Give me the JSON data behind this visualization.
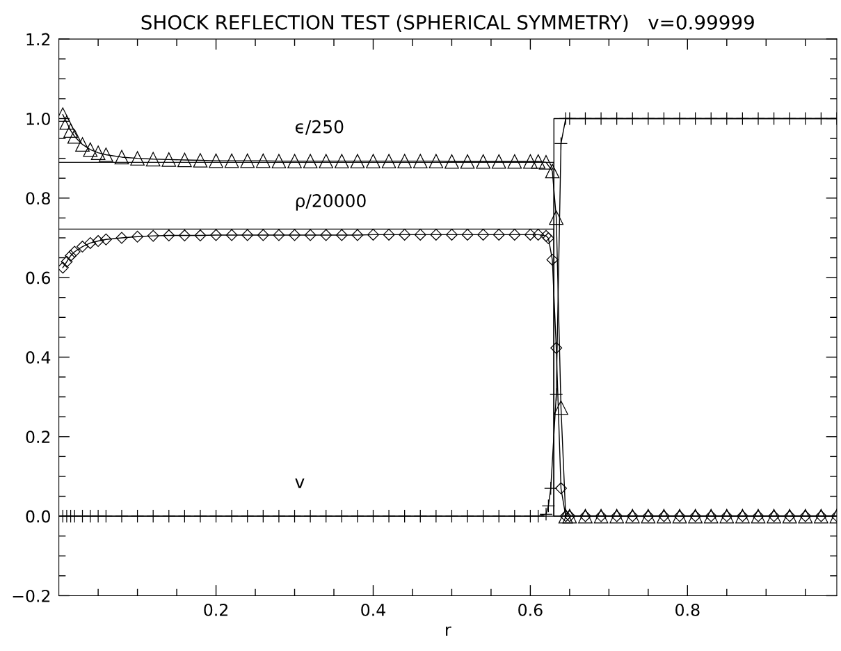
{
  "chart_data": {
    "type": "line",
    "title": "SHOCK REFLECTION TEST (SPHERICAL SYMMETRY)   v=0.99999",
    "xlabel": "r",
    "xlim": [
      0,
      0.99
    ],
    "ylim": [
      -0.2,
      1.2
    ],
    "xticks": [
      {
        "value": 0.05,
        "label": null
      },
      {
        "value": 0.1,
        "label": null
      },
      {
        "value": 0.15,
        "label": null
      },
      0.2,
      {
        "value": 0.25,
        "label": null
      },
      {
        "value": 0.3,
        "label": null
      },
      {
        "value": 0.35,
        "label": null
      },
      0.4,
      {
        "value": 0.45,
        "label": null
      },
      {
        "value": 0.5,
        "label": null
      },
      {
        "value": 0.55,
        "label": null
      },
      0.6,
      {
        "value": 0.65,
        "label": null
      },
      {
        "value": 0.7,
        "label": null
      },
      {
        "value": 0.75,
        "label": null
      },
      0.8,
      {
        "value": 0.85,
        "label": null
      },
      {
        "value": 0.9,
        "label": null
      },
      {
        "value": 0.95,
        "label": null
      }
    ],
    "yticks": [
      {
        "value": -0.2,
        "label": "−0.2"
      },
      {
        "value": -0.15,
        "label": null
      },
      {
        "value": -0.1,
        "label": null
      },
      {
        "value": -0.05,
        "label": null
      },
      {
        "value": 0.0,
        "label": "0.0"
      },
      {
        "value": 0.05,
        "label": null
      },
      {
        "value": 0.1,
        "label": null
      },
      {
        "value": 0.15,
        "label": null
      },
      0.2,
      {
        "value": 0.25,
        "label": null
      },
      {
        "value": 0.3,
        "label": null
      },
      {
        "value": 0.35,
        "label": null
      },
      0.4,
      {
        "value": 0.45,
        "label": null
      },
      {
        "value": 0.5,
        "label": null
      },
      {
        "value": 0.55,
        "label": null
      },
      0.6,
      {
        "value": 0.65,
        "label": null
      },
      {
        "value": 0.7,
        "label": null
      },
      {
        "value": 0.75,
        "label": null
      },
      0.8,
      {
        "value": 0.85,
        "label": null
      },
      {
        "value": 0.9,
        "label": null
      },
      {
        "value": 0.95,
        "label": null
      },
      {
        "value": 1.0,
        "label": "1.0"
      },
      {
        "value": 1.05,
        "label": null
      },
      {
        "value": 1.1,
        "label": null
      },
      {
        "value": 1.15,
        "label": null
      },
      1.2
    ],
    "grid": false,
    "legend": false,
    "series": [
      {
        "type": "line",
        "color": "#000000",
        "marker": "none",
        "line_style": "solid",
        "x": [
          0,
          0.63,
          0.63,
          0.99
        ],
        "values": [
          0.89,
          0.89,
          0,
          0
        ]
      },
      {
        "type": "line",
        "color": "#000000",
        "marker": "none",
        "line_style": "solid",
        "x": [
          0,
          0.63,
          0.63,
          0.99
        ],
        "values": [
          0.722,
          0.722,
          0,
          0
        ]
      },
      {
        "type": "line",
        "color": "#000000",
        "marker": "none",
        "line_style": "solid",
        "x": [
          0,
          0.63,
          0.63,
          0.99
        ],
        "values": [
          0,
          0,
          1,
          1
        ]
      },
      {
        "type": "line",
        "name": "ϵ/250",
        "color": "#000000",
        "marker": "triangle",
        "line_style": "solid",
        "x": [
          0.005,
          0.01,
          0.015,
          0.02,
          0.03,
          0.04,
          0.05,
          0.06,
          0.08,
          0.1,
          0.12,
          0.14,
          0.16,
          0.18,
          0.2,
          0.22,
          0.24,
          0.26,
          0.28,
          0.3,
          0.32,
          0.34,
          0.36,
          0.38,
          0.4,
          0.42,
          0.44,
          0.46,
          0.48,
          0.5,
          0.52,
          0.54,
          0.56,
          0.58,
          0.6,
          0.61,
          0.62,
          0.628,
          0.633,
          0.639,
          0.645,
          0.65,
          0.67,
          0.69,
          0.71,
          0.73,
          0.75,
          0.77,
          0.79,
          0.81,
          0.83,
          0.85,
          0.87,
          0.89,
          0.91,
          0.93,
          0.95,
          0.97,
          0.99
        ],
        "values": [
          1.01,
          0.99,
          0.97,
          0.955,
          0.935,
          0.922,
          0.914,
          0.909,
          0.903,
          0.9,
          0.898,
          0.897,
          0.896,
          0.895,
          0.894,
          0.894,
          0.894,
          0.894,
          0.893,
          0.893,
          0.893,
          0.893,
          0.893,
          0.893,
          0.893,
          0.893,
          0.893,
          0.893,
          0.893,
          0.892,
          0.892,
          0.892,
          0.892,
          0.892,
          0.892,
          0.892,
          0.89,
          0.868,
          0.751,
          0.273,
          0,
          0,
          0,
          0,
          0,
          0,
          0,
          0,
          0,
          0,
          0,
          0,
          0,
          0,
          0,
          0,
          0,
          0,
          0
        ]
      },
      {
        "type": "line",
        "name": "ρ/20000",
        "color": "#000000",
        "marker": "diamond",
        "line_style": "solid",
        "x": [
          0.005,
          0.01,
          0.015,
          0.02,
          0.03,
          0.04,
          0.05,
          0.06,
          0.08,
          0.1,
          0.12,
          0.14,
          0.16,
          0.18,
          0.2,
          0.22,
          0.24,
          0.26,
          0.28,
          0.3,
          0.32,
          0.34,
          0.36,
          0.38,
          0.4,
          0.42,
          0.44,
          0.46,
          0.48,
          0.5,
          0.52,
          0.54,
          0.56,
          0.58,
          0.6,
          0.61,
          0.62,
          0.623,
          0.628,
          0.633,
          0.639,
          0.645,
          0.65,
          0.67,
          0.69,
          0.71,
          0.73,
          0.75,
          0.77,
          0.79,
          0.81,
          0.83,
          0.85,
          0.87,
          0.89,
          0.91,
          0.93,
          0.95,
          0.97,
          0.99
        ],
        "values": [
          0.625,
          0.64,
          0.655,
          0.665,
          0.678,
          0.687,
          0.692,
          0.696,
          0.7,
          0.703,
          0.705,
          0.706,
          0.706,
          0.706,
          0.707,
          0.707,
          0.707,
          0.707,
          0.707,
          0.707,
          0.707,
          0.707,
          0.707,
          0.707,
          0.708,
          0.708,
          0.708,
          0.708,
          0.708,
          0.708,
          0.708,
          0.708,
          0.708,
          0.708,
          0.708,
          0.708,
          0.705,
          0.699,
          0.645,
          0.423,
          0.07,
          0,
          0,
          0,
          0,
          0,
          0,
          0,
          0,
          0,
          0,
          0,
          0,
          0,
          0,
          0,
          0,
          0,
          0,
          0
        ]
      },
      {
        "type": "line",
        "name": "v",
        "color": "#000000",
        "marker": "cross",
        "line_style": "solid",
        "x": [
          0.005,
          0.01,
          0.015,
          0.02,
          0.03,
          0.04,
          0.05,
          0.06,
          0.08,
          0.1,
          0.12,
          0.14,
          0.16,
          0.18,
          0.2,
          0.22,
          0.24,
          0.26,
          0.28,
          0.3,
          0.32,
          0.34,
          0.36,
          0.38,
          0.4,
          0.42,
          0.44,
          0.46,
          0.48,
          0.5,
          0.52,
          0.54,
          0.56,
          0.58,
          0.6,
          0.61,
          0.62,
          0.623,
          0.626,
          0.633,
          0.639,
          0.645,
          0.65,
          0.67,
          0.69,
          0.71,
          0.73,
          0.75,
          0.77,
          0.79,
          0.81,
          0.83,
          0.85,
          0.87,
          0.89,
          0.91,
          0.93,
          0.95,
          0.97,
          0.99
        ],
        "values": [
          0,
          0,
          0,
          0,
          0,
          0,
          0,
          0,
          0,
          0,
          0,
          0,
          0,
          0,
          0,
          0,
          0,
          0,
          0,
          0,
          0,
          0,
          0,
          0,
          0,
          0,
          0,
          0,
          0,
          0,
          0,
          0,
          0,
          0,
          0,
          0,
          0.005,
          0.026,
          0.07,
          0.306,
          0.937,
          1.0,
          1.0,
          1.0,
          1.0,
          1.0,
          1.0,
          1.0,
          1.0,
          1.0,
          1.0,
          1.0,
          1.0,
          1.0,
          1.0,
          1.0,
          1.0,
          1.0,
          1.0,
          1.0
        ]
      }
    ]
  }
}
